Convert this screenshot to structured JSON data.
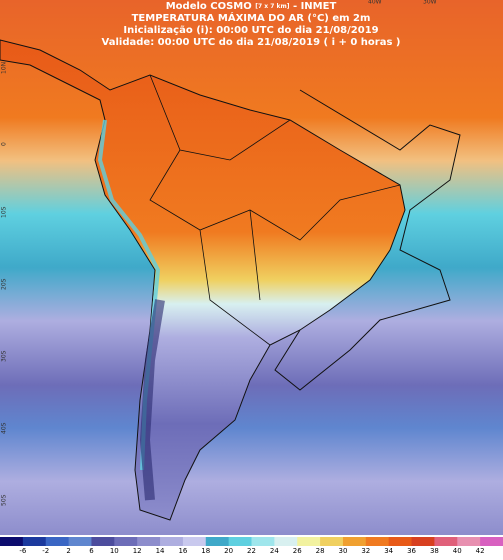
{
  "header": {
    "model": "Modelo COSMO",
    "resolution": "[7 x 7 km]",
    "source": "- INMET",
    "title": "TEMPERATURA MÁXIMA DO AR (°C) em 2m",
    "init": "Inicialização (i): 00:00 UTC do dia 21/08/2019",
    "valid": "Validade: 00:00 UTC do dia 21/08/2019 ( i + 0 horas )"
  },
  "grid_labels": {
    "top": [
      "40W",
      "30W"
    ],
    "left": [
      "10N",
      "0",
      "10S",
      "20S",
      "30S",
      "40S",
      "50S"
    ]
  },
  "legend": {
    "labels": [
      "-6",
      "-2",
      "2",
      "6",
      "10",
      "12",
      "14",
      "16",
      "18",
      "20",
      "22",
      "24",
      "26",
      "28",
      "30",
      "32",
      "34",
      "36",
      "38",
      "40",
      "42"
    ],
    "colors": [
      "#0c0c6e",
      "#1c3a9e",
      "#3a66c4",
      "#5f86cf",
      "#4d4d9e",
      "#6d6db8",
      "#8d8dcc",
      "#aeaee0",
      "#c9c9ee",
      "#3fa9c9",
      "#5fd0e0",
      "#9fe6ec",
      "#d8f0f0",
      "#f2f2a0",
      "#f0d060",
      "#f0a030",
      "#f07a20",
      "#e85a18",
      "#d84020",
      "#e0607a",
      "#e890b0",
      "#d860c0"
    ]
  }
}
